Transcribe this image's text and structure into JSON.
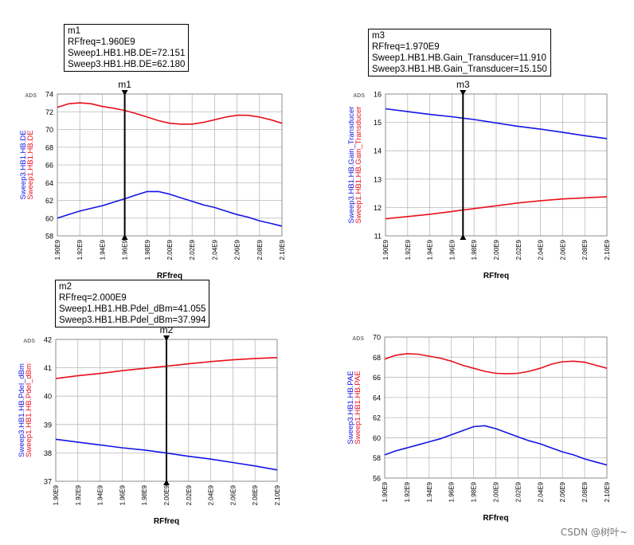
{
  "watermark": "CSDN @树叶~",
  "colors": {
    "red": "#e8101b",
    "blue": "#1515e6",
    "grid": "#b9b9b9",
    "frame": "#8c8c8c",
    "marker": "#000000"
  },
  "marker_boxes": [
    {
      "lines": [
        "m1",
        "RFfreq=1.960E9",
        "Sweep1.HB1.HB.DE=72.151",
        "Sweep3.HB1.HB.DE=62.180"
      ]
    },
    {
      "lines": [
        "m3",
        "RFfreq=1.970E9",
        "Sweep1.HB1.HB.Gain_Transducer=11.910",
        "Sweep3.HB1.HB.Gain_Transducer=15.150"
      ]
    },
    {
      "lines": [
        "m2",
        "RFfreq=2.000E9",
        "Sweep1.HB1.HB.Pdel_dBm=41.055",
        "Sweep3.HB1.HB.Pdel_dBm=37.994"
      ]
    }
  ],
  "chart_data": [
    {
      "type": "line",
      "ads_label": "ADS",
      "xlabel": "RFfreq",
      "ylabel_lines": [
        "Sweep3.HB1.HB.DE",
        "Sweep1.HB1.HB.DE"
      ],
      "x_ticks": [
        "1.90E9",
        "1.92E9",
        "1.94E9",
        "1.96E9",
        "1.98E9",
        "2.00E9",
        "2.02E9",
        "2.04E9",
        "2.06E9",
        "2.08E9",
        "2.10E9"
      ],
      "xlim": [
        1.9,
        2.1
      ],
      "ylim": [
        58,
        74
      ],
      "y_ticks": [
        "58",
        "60",
        "62",
        "64",
        "66",
        "68",
        "70",
        "72",
        "74"
      ],
      "marker": {
        "name": "m1",
        "x": 1.96
      },
      "series": [
        {
          "name": "Sweep1.HB1.HB.DE",
          "color": "red",
          "x": [
            1.9,
            1.91,
            1.92,
            1.93,
            1.94,
            1.95,
            1.96,
            1.97,
            1.98,
            1.99,
            2.0,
            2.01,
            2.02,
            2.03,
            2.04,
            2.05,
            2.06,
            2.07,
            2.08,
            2.09,
            2.1
          ],
          "values": [
            72.5,
            72.9,
            73.0,
            72.9,
            72.6,
            72.4,
            72.15,
            71.8,
            71.4,
            71.0,
            70.7,
            70.6,
            70.6,
            70.8,
            71.1,
            71.4,
            71.6,
            71.6,
            71.4,
            71.1,
            70.7
          ]
        },
        {
          "name": "Sweep3.HB1.HB.DE",
          "color": "blue",
          "x": [
            1.9,
            1.91,
            1.92,
            1.93,
            1.94,
            1.95,
            1.96,
            1.97,
            1.98,
            1.99,
            2.0,
            2.01,
            2.02,
            2.03,
            2.04,
            2.05,
            2.06,
            2.07,
            2.08,
            2.09,
            2.1
          ],
          "values": [
            60.0,
            60.4,
            60.8,
            61.1,
            61.4,
            61.8,
            62.18,
            62.6,
            63.0,
            63.0,
            62.7,
            62.3,
            61.9,
            61.5,
            61.2,
            60.8,
            60.4,
            60.1,
            59.7,
            59.4,
            59.1
          ]
        }
      ]
    },
    {
      "type": "line",
      "ads_label": "ADS",
      "xlabel": "RFfreq",
      "ylabel_lines": [
        "Sweep3.HB1.HB.Gain_Transducer",
        "Sweep1.HB1.HB.Gain_Transducer"
      ],
      "x_ticks": [
        "1.90E9",
        "1.92E9",
        "1.94E9",
        "1.96E9",
        "1.98E9",
        "2.00E9",
        "2.02E9",
        "2.04E9",
        "2.06E9",
        "2.08E9",
        "2.10E9"
      ],
      "xlim": [
        1.9,
        2.1
      ],
      "ylim": [
        11,
        16
      ],
      "y_ticks": [
        "11",
        "12",
        "13",
        "14",
        "15",
        "16"
      ],
      "marker": {
        "name": "m3",
        "x": 1.97
      },
      "series": [
        {
          "name": "Sweep1.HB1.HB.Gain_Transducer",
          "color": "red",
          "x": [
            1.9,
            1.92,
            1.94,
            1.96,
            1.97,
            1.98,
            2.0,
            2.02,
            2.04,
            2.06,
            2.08,
            2.1
          ],
          "values": [
            11.6,
            11.68,
            11.76,
            11.86,
            11.91,
            11.96,
            12.06,
            12.16,
            12.24,
            12.3,
            12.34,
            12.38
          ]
        },
        {
          "name": "Sweep3.HB1.HB.Gain_Transducer",
          "color": "blue",
          "x": [
            1.9,
            1.92,
            1.94,
            1.96,
            1.97,
            1.98,
            2.0,
            2.02,
            2.04,
            2.06,
            2.08,
            2.1
          ],
          "values": [
            15.48,
            15.38,
            15.28,
            15.2,
            15.15,
            15.1,
            14.98,
            14.86,
            14.76,
            14.65,
            14.53,
            14.43
          ]
        }
      ]
    },
    {
      "type": "line",
      "ads_label": "ADS",
      "xlabel": "RFfreq",
      "ylabel_lines": [
        "Sweep3.HB1.HB.Pdel_dBm",
        "Sweep1.HB1.HB.Pdel_dBm"
      ],
      "x_ticks": [
        "1.90E9",
        "1.92E9",
        "1.94E9",
        "1.96E9",
        "1.98E9",
        "2.00E9",
        "2.02E9",
        "2.04E9",
        "2.06E9",
        "2.08E9",
        "2.10E9"
      ],
      "xlim": [
        1.9,
        2.1
      ],
      "ylim": [
        37,
        42
      ],
      "y_ticks": [
        "37",
        "38",
        "39",
        "40",
        "41",
        "42"
      ],
      "marker": {
        "name": "m2",
        "x": 2.0
      },
      "series": [
        {
          "name": "Sweep1.HB1.HB.Pdel_dBm",
          "color": "red",
          "x": [
            1.9,
            1.92,
            1.94,
            1.96,
            1.98,
            2.0,
            2.02,
            2.04,
            2.06,
            2.08,
            2.1
          ],
          "values": [
            40.62,
            40.72,
            40.8,
            40.9,
            40.98,
            41.055,
            41.14,
            41.22,
            41.28,
            41.33,
            41.36
          ]
        },
        {
          "name": "Sweep3.HB1.HB.Pdel_dBm",
          "color": "blue",
          "x": [
            1.9,
            1.92,
            1.94,
            1.96,
            1.98,
            2.0,
            2.02,
            2.04,
            2.06,
            2.08,
            2.1
          ],
          "values": [
            38.48,
            38.38,
            38.28,
            38.18,
            38.1,
            37.994,
            37.88,
            37.78,
            37.66,
            37.54,
            37.4
          ]
        }
      ]
    },
    {
      "type": "line",
      "ads_label": "ADS",
      "xlabel": "RFfreq",
      "ylabel_lines": [
        "Sweep3.HB1.HB.PAE",
        "Sweep1.HB1.HB.PAE"
      ],
      "x_ticks": [
        "1.90E9",
        "1.92E9",
        "1.94E9",
        "1.96E9",
        "1.98E9",
        "2.00E9",
        "2.02E9",
        "2.04E9",
        "2.06E9",
        "2.08E9",
        "2.10E9"
      ],
      "xlim": [
        1.9,
        2.1
      ],
      "ylim": [
        56,
        70
      ],
      "y_ticks": [
        "56",
        "58",
        "60",
        "62",
        "64",
        "66",
        "68",
        "70"
      ],
      "marker": null,
      "series": [
        {
          "name": "Sweep1.HB1.HB.PAE",
          "color": "red",
          "x": [
            1.9,
            1.91,
            1.92,
            1.93,
            1.94,
            1.95,
            1.96,
            1.97,
            1.98,
            1.99,
            2.0,
            2.01,
            2.02,
            2.03,
            2.04,
            2.05,
            2.06,
            2.07,
            2.08,
            2.09,
            2.1
          ],
          "values": [
            67.8,
            68.2,
            68.35,
            68.3,
            68.1,
            67.9,
            67.6,
            67.2,
            66.9,
            66.6,
            66.4,
            66.35,
            66.4,
            66.6,
            66.9,
            67.3,
            67.55,
            67.6,
            67.5,
            67.2,
            66.9
          ]
        },
        {
          "name": "Sweep3.HB1.HB.PAE",
          "color": "blue",
          "x": [
            1.9,
            1.91,
            1.92,
            1.93,
            1.94,
            1.95,
            1.96,
            1.97,
            1.98,
            1.99,
            2.0,
            2.01,
            2.02,
            2.03,
            2.04,
            2.05,
            2.06,
            2.07,
            2.08,
            2.09,
            2.1
          ],
          "values": [
            58.3,
            58.7,
            59.0,
            59.3,
            59.6,
            59.9,
            60.3,
            60.7,
            61.1,
            61.2,
            60.9,
            60.5,
            60.1,
            59.7,
            59.4,
            59.0,
            58.6,
            58.3,
            57.9,
            57.6,
            57.3
          ]
        }
      ]
    }
  ]
}
